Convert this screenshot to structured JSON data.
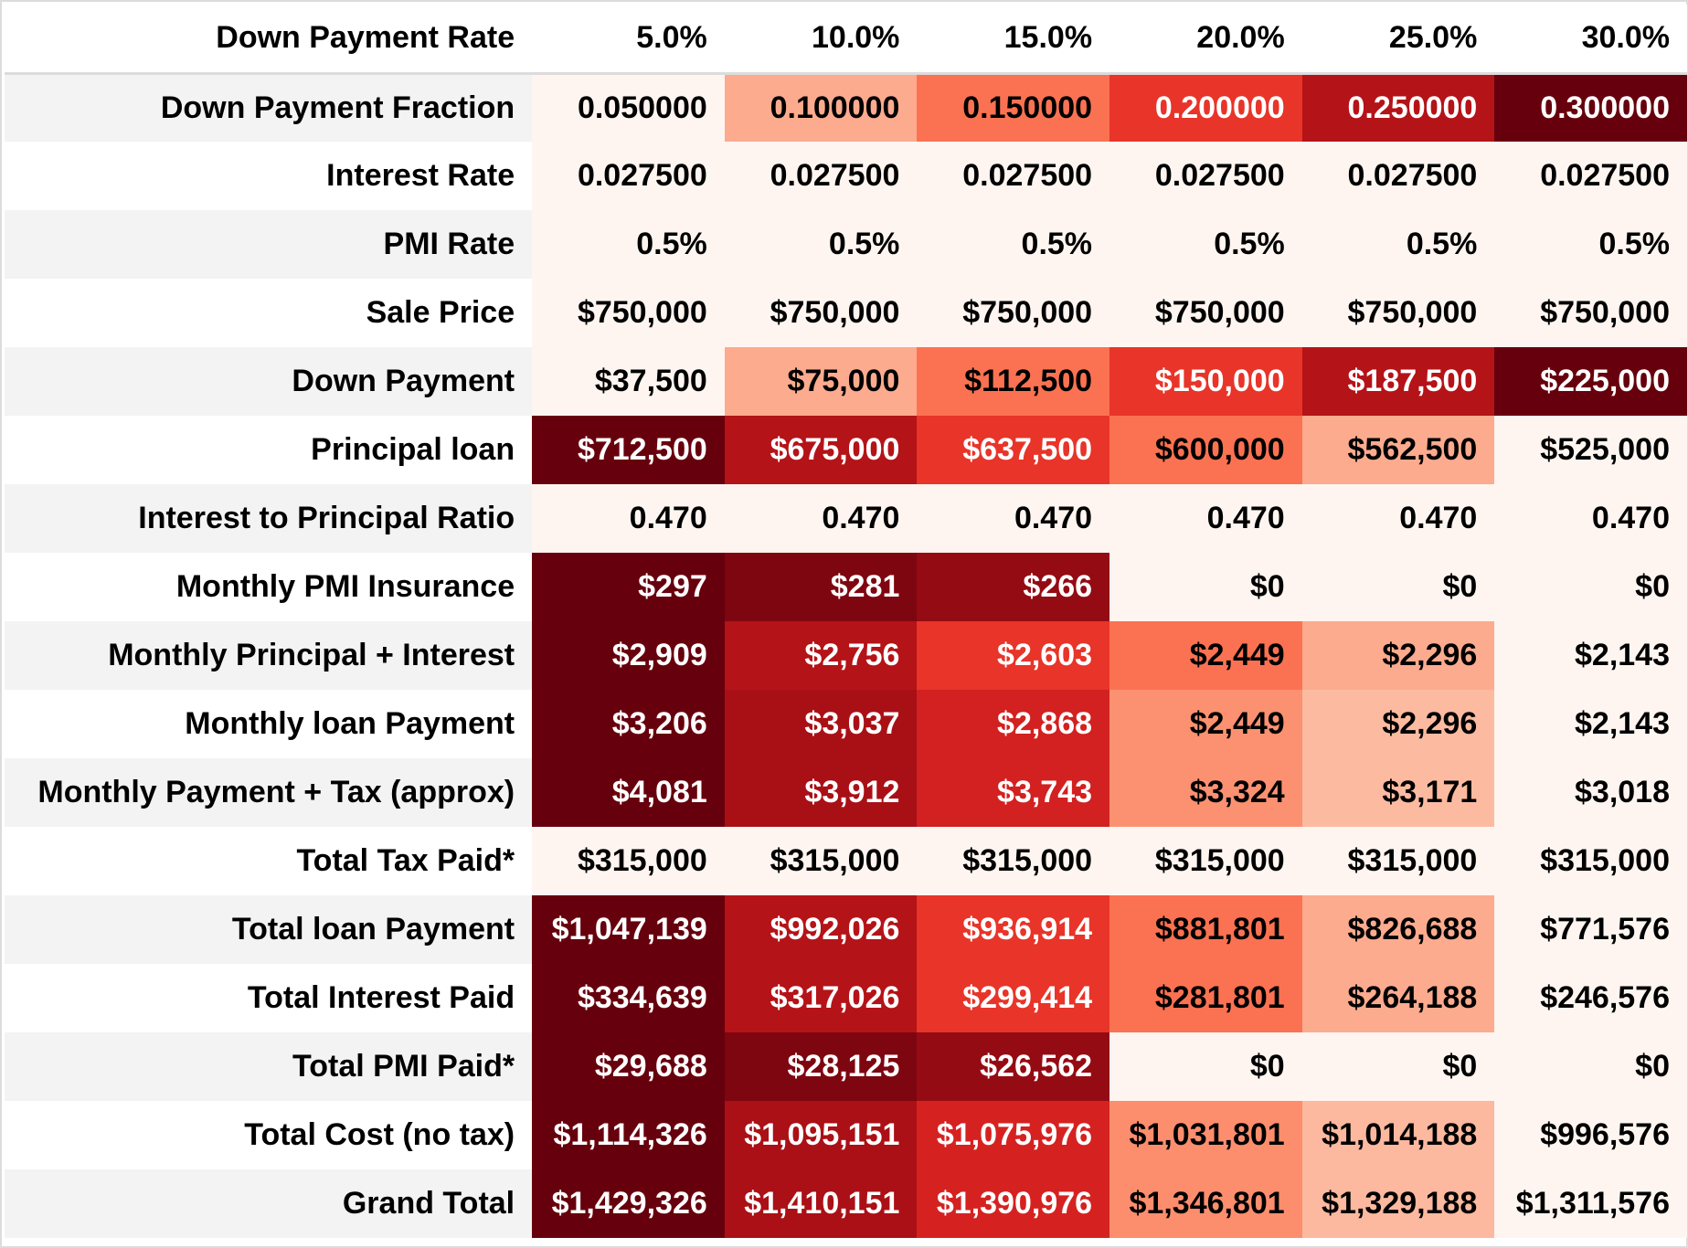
{
  "chart_data": {
    "type": "heatmap",
    "corner_label": "Down Payment Rate",
    "columns": [
      "5.0%",
      "10.0%",
      "15.0%",
      "20.0%",
      "25.0%",
      "30.0%"
    ],
    "rows": [
      {
        "label": "Down Payment Fraction",
        "values": [
          "0.050000",
          "0.100000",
          "0.150000",
          "0.200000",
          "0.250000",
          "0.300000"
        ],
        "levels": [
          0,
          0.2,
          0.4,
          0.6,
          0.8,
          1
        ]
      },
      {
        "label": "Interest Rate",
        "values": [
          "0.027500",
          "0.027500",
          "0.027500",
          "0.027500",
          "0.027500",
          "0.027500"
        ],
        "levels": [
          0,
          0,
          0,
          0,
          0,
          0
        ]
      },
      {
        "label": "PMI Rate",
        "values": [
          "0.5%",
          "0.5%",
          "0.5%",
          "0.5%",
          "0.5%",
          "0.5%"
        ],
        "levels": [
          0,
          0,
          0,
          0,
          0,
          0
        ]
      },
      {
        "label": "Sale Price",
        "values": [
          "$750,000",
          "$750,000",
          "$750,000",
          "$750,000",
          "$750,000",
          "$750,000"
        ],
        "levels": [
          0,
          0,
          0,
          0,
          0,
          0
        ]
      },
      {
        "label": "Down Payment",
        "values": [
          "$37,500",
          "$75,000",
          "$112,500",
          "$150,000",
          "$187,500",
          "$225,000"
        ],
        "levels": [
          0,
          0.2,
          0.4,
          0.6,
          0.8,
          1
        ]
      },
      {
        "label": "Principal loan",
        "values": [
          "$712,500",
          "$675,000",
          "$637,500",
          "$600,000",
          "$562,500",
          "$525,000"
        ],
        "levels": [
          1,
          0.8,
          0.6,
          0.4,
          0.2,
          0
        ]
      },
      {
        "label": "Interest to Principal Ratio",
        "values": [
          "0.470",
          "0.470",
          "0.470",
          "0.470",
          "0.470",
          "0.470"
        ],
        "levels": [
          0,
          0,
          0,
          0,
          0,
          0
        ]
      },
      {
        "label": "Monthly PMI Insurance",
        "values": [
          "$297",
          "$281",
          "$266",
          "$0",
          "$0",
          "$0"
        ],
        "levels": [
          1,
          0.946,
          0.896,
          0,
          0,
          0
        ]
      },
      {
        "label": "Monthly Principal + Interest",
        "values": [
          "$2,909",
          "$2,756",
          "$2,603",
          "$2,449",
          "$2,296",
          "$2,143"
        ],
        "levels": [
          1,
          0.8,
          0.6,
          0.4,
          0.2,
          0
        ]
      },
      {
        "label": "Monthly loan Payment",
        "values": [
          "$3,206",
          "$3,037",
          "$2,868",
          "$2,449",
          "$2,296",
          "$2,143"
        ],
        "levels": [
          1,
          0.841,
          0.682,
          0.288,
          0.144,
          0
        ]
      },
      {
        "label": "Monthly Payment + Tax (approx)",
        "values": [
          "$4,081",
          "$3,912",
          "$3,743",
          "$3,324",
          "$3,171",
          "$3,018"
        ],
        "levels": [
          1,
          0.841,
          0.682,
          0.288,
          0.144,
          0
        ]
      },
      {
        "label": "Total Tax Paid*",
        "values": [
          "$315,000",
          "$315,000",
          "$315,000",
          "$315,000",
          "$315,000",
          "$315,000"
        ],
        "levels": [
          0,
          0,
          0,
          0,
          0,
          0
        ]
      },
      {
        "label": "Total loan Payment",
        "values": [
          "$1,047,139",
          "$992,026",
          "$936,914",
          "$881,801",
          "$826,688",
          "$771,576"
        ],
        "levels": [
          1,
          0.8,
          0.6,
          0.4,
          0.2,
          0
        ]
      },
      {
        "label": "Total Interest Paid",
        "values": [
          "$334,639",
          "$317,026",
          "$299,414",
          "$281,801",
          "$264,188",
          "$246,576"
        ],
        "levels": [
          1,
          0.8,
          0.6,
          0.4,
          0.2,
          0
        ]
      },
      {
        "label": "Total PMI Paid*",
        "values": [
          "$29,688",
          "$28,125",
          "$26,562",
          "$0",
          "$0",
          "$0"
        ],
        "levels": [
          1,
          0.947,
          0.895,
          0,
          0,
          0
        ]
      },
      {
        "label": "Total Cost (no tax)",
        "values": [
          "$1,114,326",
          "$1,095,151",
          "$1,075,976",
          "$1,031,801",
          "$1,014,188",
          "$996,576"
        ],
        "levels": [
          1,
          0.837,
          0.674,
          0.299,
          0.15,
          0
        ]
      },
      {
        "label": "Grand Total",
        "values": [
          "$1,429,326",
          "$1,410,151",
          "$1,390,976",
          "$1,346,801",
          "$1,329,188",
          "$1,311,576"
        ],
        "levels": [
          1,
          0.837,
          0.674,
          0.299,
          0.15,
          0
        ]
      }
    ],
    "colorscale": [
      "#fff5f0",
      "#fcbba1",
      "#fc9272",
      "#fb6a4a",
      "#ef3b2c",
      "#cb181d",
      "#a50f15",
      "#67000d"
    ]
  }
}
